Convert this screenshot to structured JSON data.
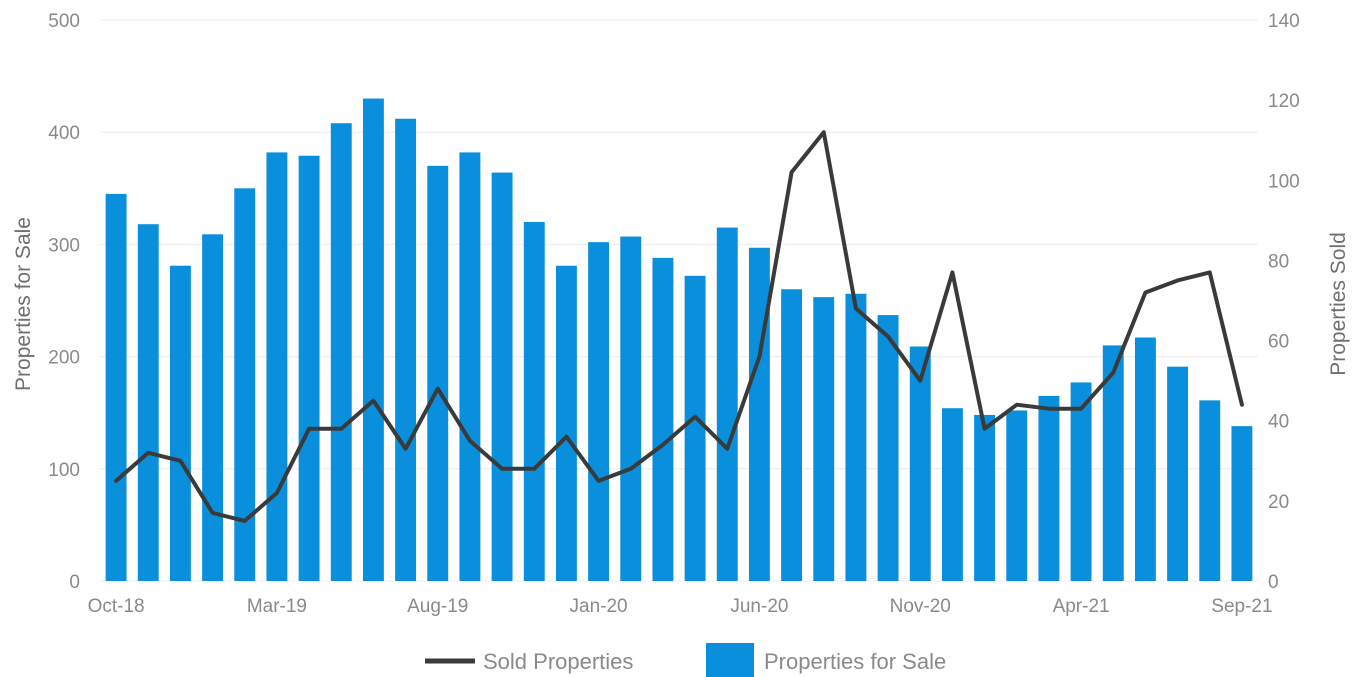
{
  "chart_data": {
    "type": "bar",
    "categories": [
      "Oct-18",
      "Nov-18",
      "Dec-18",
      "Jan-19",
      "Feb-19",
      "Mar-19",
      "Apr-19",
      "May-19",
      "Jun-19",
      "Jul-19",
      "Aug-19",
      "Sep-19",
      "Oct-19",
      "Nov-19",
      "Dec-19",
      "Jan-20",
      "Feb-20",
      "Mar-20",
      "Apr-20",
      "May-20",
      "Jun-20",
      "Jul-20",
      "Aug-20",
      "Sep-20",
      "Oct-20",
      "Nov-20",
      "Dec-20",
      "Jan-21",
      "Feb-21",
      "Mar-21",
      "Apr-21",
      "May-21",
      "Jun-21",
      "Jul-21",
      "Aug-21",
      "Sep-21"
    ],
    "x_tick_labels": [
      "Oct-18",
      "Mar-19",
      "Aug-19",
      "Jan-20",
      "Jun-20",
      "Nov-20",
      "Apr-21",
      "Sep-21"
    ],
    "series": [
      {
        "name": "Properties for Sale",
        "type": "bar",
        "axis": "left",
        "color": "#0a8fdc",
        "values": [
          345,
          318,
          281,
          309,
          350,
          382,
          379,
          408,
          430,
          412,
          370,
          382,
          364,
          320,
          281,
          302,
          307,
          288,
          272,
          315,
          297,
          260,
          253,
          256,
          237,
          209,
          154,
          148,
          152,
          165,
          177,
          210,
          217,
          191,
          161,
          138
        ]
      },
      {
        "name": "Sold Properties",
        "type": "line",
        "axis": "right",
        "color": "#3a3a3a",
        "values": [
          25,
          32,
          30,
          17,
          15,
          22,
          38,
          38,
          45,
          33,
          48,
          35,
          28,
          28,
          36,
          25,
          28,
          34,
          41,
          33,
          56,
          102,
          112,
          68,
          61,
          50,
          77,
          38,
          44,
          43,
          43,
          52,
          72,
          75,
          77,
          44
        ]
      }
    ],
    "y_left": {
      "label": "Properties for Sale",
      "lim": [
        0,
        500
      ],
      "ticks": [
        "0",
        "100",
        "200",
        "300",
        "400",
        "500"
      ]
    },
    "y_right": {
      "label": "Properties Sold",
      "lim": [
        0,
        140
      ],
      "ticks": [
        "0",
        "20",
        "40",
        "60",
        "80",
        "100",
        "120",
        "140"
      ]
    },
    "grid": true,
    "legend": {
      "placement": "bottom-center",
      "entries": [
        "Sold Properties",
        "Properties for Sale"
      ]
    }
  }
}
